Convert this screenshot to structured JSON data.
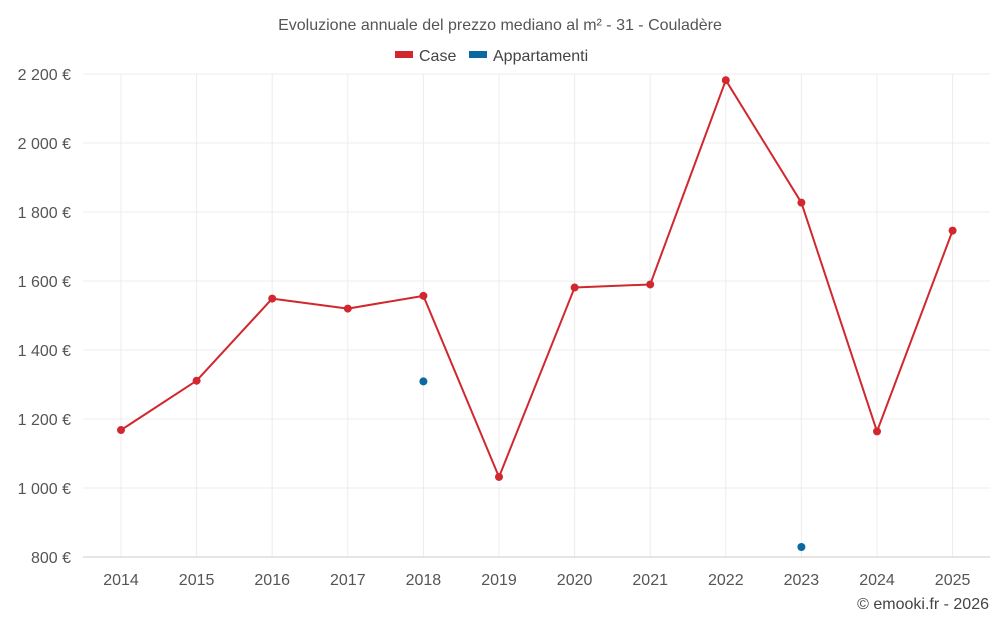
{
  "chart_data": {
    "type": "line",
    "title": "Evoluzione annuale del prezzo mediano al m² - 31 - Couladère",
    "categories": [
      "2014",
      "2015",
      "2016",
      "2017",
      "2018",
      "2019",
      "2020",
      "2021",
      "2022",
      "2023",
      "2024",
      "2025"
    ],
    "series": [
      {
        "name": "Case",
        "color": "#d0282e",
        "values": [
          1168,
          1311,
          1549,
          1520,
          1557,
          1032,
          1581,
          1590,
          2182,
          1827,
          1164,
          1746
        ]
      },
      {
        "name": "Appartamenti",
        "color": "#0c68a0",
        "values": [
          null,
          null,
          null,
          null,
          1309,
          null,
          null,
          null,
          null,
          829,
          null,
          null
        ]
      }
    ],
    "ylim": [
      800,
      2200
    ],
    "yticks": [
      800,
      1000,
      1200,
      1400,
      1600,
      1800,
      2000,
      2200
    ],
    "ytick_labels": [
      "800 €",
      "1 000 €",
      "1 200 €",
      "1 400 €",
      "1 600 €",
      "1 800 €",
      "2 000 €",
      "2 200 €"
    ],
    "grid": true,
    "legend_position": "top-center"
  },
  "credit": "© emooki.fr - 2026"
}
